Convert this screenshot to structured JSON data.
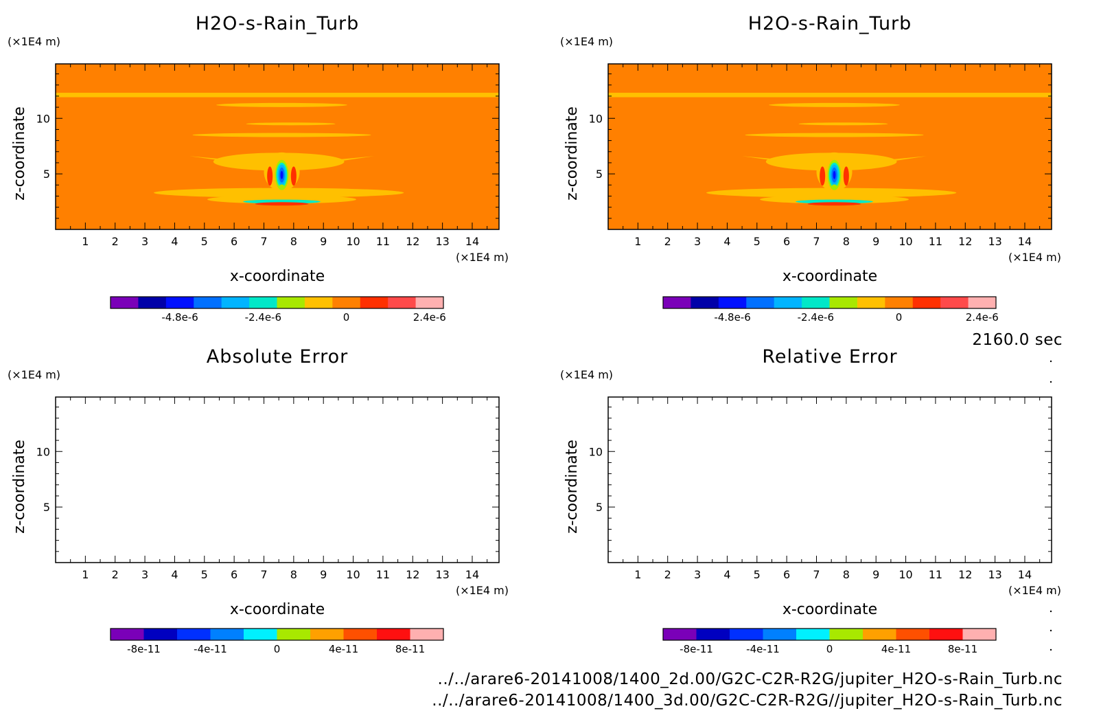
{
  "time_label": "2160.0 sec",
  "footer": {
    "line1": "../../arare6-20141008/1400_2d.00/G2C-C2R-R2G/jupiter_H2O-s-Rain_Turb.nc",
    "line2": "../../arare6-20141008/1400_3d.00/G2C-C2R-R2G//jupiter_H2O-s-Rain_Turb.nc"
  },
  "chart_data": [
    {
      "type": "heatmap",
      "title": "H2O-s-Rain_Turb",
      "xlabel": "x-coordinate",
      "ylabel": "z-coordinate",
      "x_unit": "(×1E4 m)",
      "y_unit": "(×1E4 m)",
      "xlim": [
        0,
        14.9
      ],
      "ylim": [
        0,
        14.9
      ],
      "xticks": [
        "1",
        "2",
        "3",
        "4",
        "5",
        "6",
        "7",
        "8",
        "9",
        "10",
        "11",
        "12",
        "13",
        "14"
      ],
      "yticks": [
        "5",
        "10"
      ],
      "field": "contours: background ~0 (orange), thin layer near z=12, updraft cell centered x≈7.6, z≈4.8 with minima ~-5e-6",
      "colorbar": {
        "ticks": [
          "-4.8e-6",
          "-2.4e-6",
          "0",
          "2.4e-6"
        ],
        "colors": [
          "#7a00b8",
          "#0000a8",
          "#0010ff",
          "#0070ff",
          "#00b4ff",
          "#00e8c8",
          "#a8e800",
          "#ffc000",
          "#ff8000",
          "#ff3000",
          "#ff4a4a",
          "#ffb0b0"
        ]
      }
    },
    {
      "type": "heatmap",
      "title": "H2O-s-Rain_Turb",
      "xlabel": "x-coordinate",
      "ylabel": "z-coordinate",
      "x_unit": "(×1E4 m)",
      "y_unit": "(×1E4 m)",
      "xlim": [
        0,
        14.9
      ],
      "ylim": [
        0,
        14.9
      ],
      "xticks": [
        "1",
        "2",
        "3",
        "4",
        "5",
        "6",
        "7",
        "8",
        "9",
        "10",
        "11",
        "12",
        "13",
        "14"
      ],
      "yticks": [
        "5",
        "10"
      ],
      "colorbar": {
        "ticks": [
          "-4.8e-6",
          "-2.4e-6",
          "0",
          "2.4e-6"
        ],
        "colors": [
          "#7a00b8",
          "#0000a8",
          "#0010ff",
          "#0070ff",
          "#00b4ff",
          "#00e8c8",
          "#a8e800",
          "#ffc000",
          "#ff8000",
          "#ff3000",
          "#ff4a4a",
          "#ffb0b0"
        ]
      }
    },
    {
      "type": "heatmap",
      "title": "Absolute Error",
      "xlabel": "x-coordinate",
      "ylabel": "z-coordinate",
      "x_unit": "(×1E4 m)",
      "y_unit": "(×1E4 m)",
      "xlim": [
        0,
        14.9
      ],
      "ylim": [
        0,
        14.9
      ],
      "xticks": [
        "1",
        "2",
        "3",
        "4",
        "5",
        "6",
        "7",
        "8",
        "9",
        "10",
        "11",
        "12",
        "13",
        "14"
      ],
      "yticks": [
        "5",
        "10"
      ],
      "field": "empty",
      "colorbar": {
        "ticks": [
          "-8e-11",
          "-4e-11",
          "0",
          "4e-11",
          "8e-11"
        ],
        "colors": [
          "#7a00b8",
          "#0000c0",
          "#0030ff",
          "#0080ff",
          "#00f0ff",
          "#a8e800",
          "#ffa000",
          "#ff5000",
          "#ff1010",
          "#ffb0b0"
        ]
      }
    },
    {
      "type": "heatmap",
      "title": "Relative Error",
      "xlabel": "x-coordinate",
      "ylabel": "z-coordinate",
      "x_unit": "(×1E4 m)",
      "y_unit": "(×1E4 m)",
      "xlim": [
        0,
        14.9
      ],
      "ylim": [
        0,
        14.9
      ],
      "xticks": [
        "1",
        "2",
        "3",
        "4",
        "5",
        "6",
        "7",
        "8",
        "9",
        "10",
        "11",
        "12",
        "13",
        "14"
      ],
      "yticks": [
        "5",
        "10"
      ],
      "field": "empty",
      "colorbar": {
        "ticks": [
          "-8e-11",
          "-4e-11",
          "0",
          "4e-11",
          "8e-11"
        ],
        "colors": [
          "#7a00b8",
          "#0000c0",
          "#0030ff",
          "#0080ff",
          "#00f0ff",
          "#a8e800",
          "#ffa000",
          "#ff5000",
          "#ff1010",
          "#ffb0b0"
        ]
      }
    }
  ]
}
